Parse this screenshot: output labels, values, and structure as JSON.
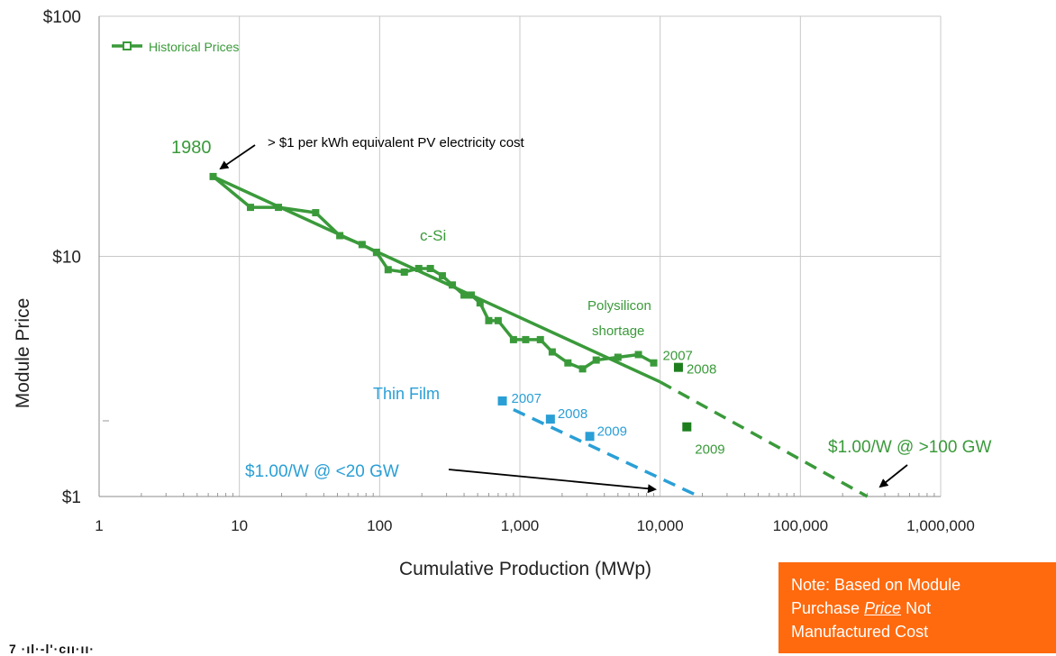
{
  "chart_data": {
    "type": "line",
    "xscale": "log",
    "yscale": "log",
    "xlim": [
      1,
      1000000
    ],
    "ylim": [
      1,
      100
    ],
    "xlabel": "Cumulative Production (MWp)",
    "ylabel": "Module Price",
    "x_tick_labels": [
      {
        "value": 1,
        "label": "1"
      },
      {
        "value": 10,
        "label": "10"
      },
      {
        "value": 100,
        "label": "100"
      },
      {
        "value": 1000,
        "label": "1,000"
      },
      {
        "value": 10000,
        "label": "10,000"
      },
      {
        "value": 100000,
        "label": "100,000"
      },
      {
        "value": 1000000,
        "label": "1,000,000"
      }
    ],
    "y_tick_labels": [
      {
        "value": 100,
        "label": "$100"
      },
      {
        "value": 10,
        "label": "$10"
      },
      {
        "value": 1,
        "label": "$1"
      }
    ],
    "grid": true,
    "legend": {
      "position": "top-left",
      "entries": [
        {
          "label": "Historical Prices",
          "color": "#3a9a3a"
        }
      ]
    },
    "series": [
      {
        "name": "Historical Prices",
        "color": "#3a9a3a",
        "x": [
          6.5,
          12,
          19,
          35,
          52,
          75,
          95,
          115,
          150,
          190,
          230,
          280,
          330,
          400,
          450,
          520,
          600,
          700,
          900,
          1100,
          1400,
          1700,
          2200,
          2800,
          3500,
          5000,
          7000,
          9000
        ],
        "y": [
          21.5,
          16,
          16,
          15.2,
          12.2,
          11.2,
          10.4,
          8.8,
          8.6,
          8.9,
          8.9,
          8.3,
          7.6,
          6.9,
          6.9,
          6.4,
          5.4,
          5.4,
          4.5,
          4.5,
          4.5,
          4.0,
          3.6,
          3.4,
          3.7,
          3.8,
          3.9,
          3.6
        ]
      },
      {
        "name": "c-Si",
        "color": "#3a9a3a",
        "trend": true,
        "solid_x": [
          6.5,
          10000
        ],
        "solid_y": [
          21.5,
          3.0
        ],
        "dashed_x": [
          10000,
          300000
        ],
        "dashed_y": [
          3.0,
          1.0
        ]
      },
      {
        "name": "Thin Film",
        "color": "#2a9fd6",
        "trend": true,
        "dashed_x": [
          900,
          19000
        ],
        "dashed_y": [
          2.3,
          1.0
        ]
      }
    ],
    "points": [
      {
        "series": "c-Si",
        "x": 13500,
        "y": 3.45,
        "label": "2008",
        "color": "#1e7e1e"
      },
      {
        "series": "c-Si",
        "x": 15500,
        "y": 1.95,
        "label": "2009",
        "color": "#1e7e1e"
      },
      {
        "series": "Thin Film",
        "x": 750,
        "y": 2.5,
        "label": "2007",
        "color": "#2a9fd6"
      },
      {
        "series": "Thin Film",
        "x": 1650,
        "y": 2.1,
        "label": "2008",
        "color": "#2a9fd6"
      },
      {
        "series": "Thin Film",
        "x": 3150,
        "y": 1.78,
        "label": "2009",
        "color": "#2a9fd6"
      }
    ],
    "annotations": [
      {
        "text": "1980",
        "x": 6.5,
        "y": 21.5,
        "color": "#3a9a3a"
      },
      {
        "text": "> $1 per kWh equivalent PV electricity cost",
        "color": "#000000"
      },
      {
        "text": "c-Si",
        "color": "#3a9a3a"
      },
      {
        "text": "Polysilicon",
        "color": "#3a9a3a"
      },
      {
        "text": "shortage",
        "color": "#3a9a3a"
      },
      {
        "text": "2007",
        "x": 9000,
        "y": 3.6,
        "color": "#3a9a3a"
      },
      {
        "text": "Thin Film",
        "color": "#2a9fd6"
      },
      {
        "text": "$1.00/W @ <20 GW",
        "color": "#2a9fd6"
      },
      {
        "text": "$1.00/W @ >100 GW",
        "color": "#3a9a3a"
      }
    ]
  },
  "note": {
    "line1": "Note: Based on Module",
    "line2_prefix": "Purchase ",
    "line2_emphasis": "Price",
    "line2_suffix": " Not",
    "line3": "Manufactured Cost",
    "background": "#ff6a0e"
  },
  "cut_off_text": "7    ·ıl·-l'·cıı·ıı·"
}
